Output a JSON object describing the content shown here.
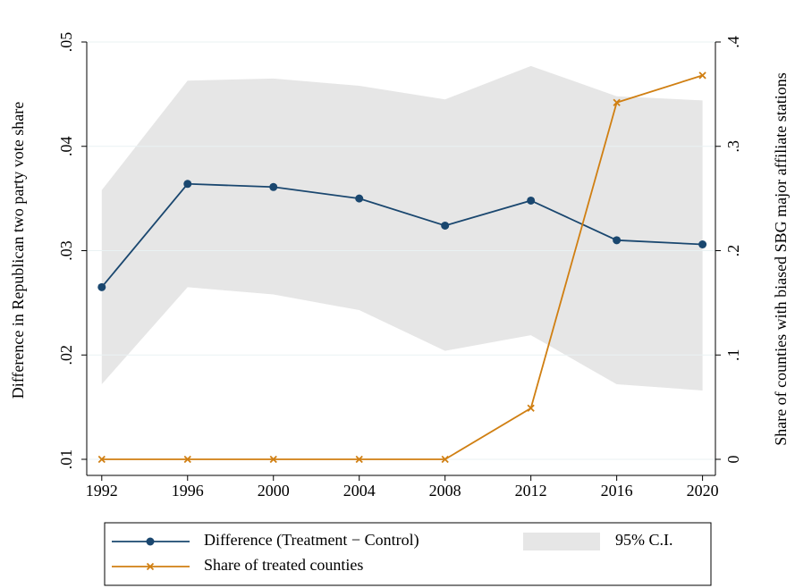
{
  "chart_data": {
    "type": "line",
    "x": [
      1992,
      1996,
      2000,
      2004,
      2008,
      2012,
      2016,
      2020
    ],
    "series": [
      {
        "name": "Difference (Treatment − Control)",
        "color": "#1a476f",
        "axis": "y",
        "marker": "circle",
        "values": [
          0.0265,
          0.0364,
          0.0361,
          0.035,
          0.0324,
          0.0348,
          0.031,
          0.0306
        ]
      },
      {
        "name": "Share of treated counties",
        "color": "#d07f12",
        "axis": "y2",
        "marker": "x",
        "values": [
          0,
          0,
          0,
          0,
          0,
          0.049,
          0.342,
          0.368
        ]
      }
    ],
    "ci": {
      "name": "95% C.I.",
      "color": "#e6e6e6",
      "upper": [
        0.0358,
        0.0463,
        0.0465,
        0.0458,
        0.0445,
        0.0477,
        0.0448,
        0.0444
      ],
      "lower": [
        0.0172,
        0.0265,
        0.0258,
        0.0243,
        0.0204,
        0.0219,
        0.0172,
        0.0166
      ]
    },
    "ylabel": "Difference in Republican two party vote share",
    "y2label": "Share of counties with biased SBG major affiliate stations",
    "xlim": [
      1991.3,
      2020.6
    ],
    "xticks": [
      1992,
      1996,
      2000,
      2004,
      2008,
      2012,
      2016,
      2020
    ],
    "ylim": [
      0.01,
      0.05
    ],
    "yticks": [
      {
        "value": 0.01,
        "label": ".01"
      },
      {
        "value": 0.02,
        "label": ".02"
      },
      {
        "value": 0.03,
        "label": ".03"
      },
      {
        "value": 0.04,
        "label": ".04"
      },
      {
        "value": 0.05,
        "label": ".05"
      }
    ],
    "y2lim": [
      0,
      0.4
    ],
    "y2ticks": [
      0,
      {
        "value": 0.1,
        "label": ".1"
      },
      {
        "value": 0.2,
        "label": ".2"
      },
      {
        "value": 0.3,
        "label": ".3"
      },
      {
        "value": 0.4,
        "label": ".4"
      }
    ],
    "grid": true
  }
}
